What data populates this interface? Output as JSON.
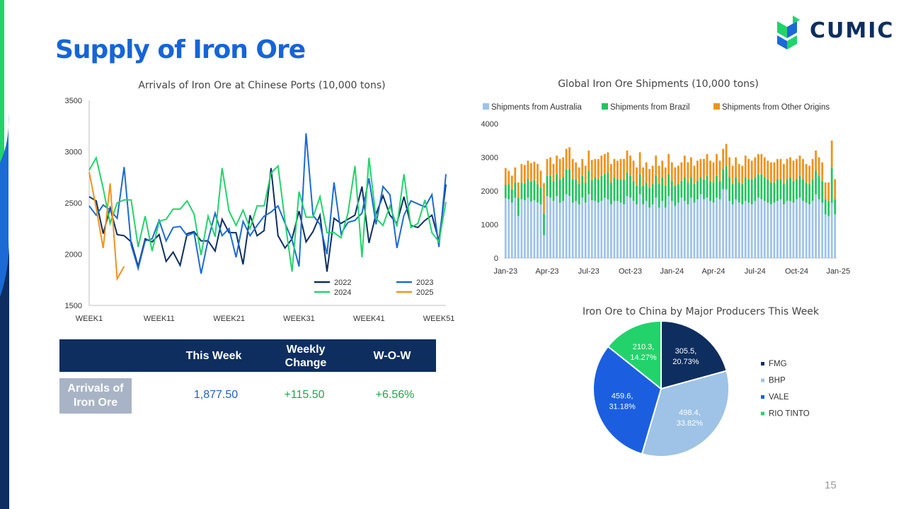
{
  "page": {
    "title": "Supply of Iron Ore",
    "page_number": "15",
    "logo_text": "CUMIC"
  },
  "colors": {
    "title": "#1565d8",
    "navy": "#0e2e60",
    "y2022": "#0e2e60",
    "y2023": "#1b6ad6",
    "y2024": "#22d36b",
    "y2025": "#f0921d",
    "australia": "#9ec3e6",
    "brazil": "#22c55e",
    "other": "#f0921d",
    "fmg": "#0e2e60",
    "bhp": "#9ec3e6",
    "vale": "#1b5fe0",
    "rio": "#22d36b",
    "positive": "#22a548",
    "value_blue": "#1f5fbf"
  },
  "table": {
    "headers": [
      "This Week",
      "Weekly\nChange",
      "W-O-W"
    ],
    "row_label": "Arrivals of\nIron Ore",
    "this_week": "1,877.50",
    "weekly_change": "+115.50",
    "wow": "+6.56%"
  },
  "chart_data": [
    {
      "type": "line",
      "title": "Arrivals of Iron Ore at Chinese Ports (10,000 tons)",
      "ylim": [
        1500,
        3500
      ],
      "yticks": [
        "3500",
        "3000",
        "2500",
        "2000",
        "1500"
      ],
      "xticks": [
        "WEEK1",
        "WEEK11",
        "WEEK21",
        "WEEK31",
        "WEEK41",
        "WEEK51"
      ],
      "series": [
        {
          "name": "2022",
          "values": [
            2560,
            2520,
            2200,
            2450,
            2190,
            2180,
            2120,
            1880,
            2150,
            2120,
            2190,
            1930,
            2020,
            1890,
            2200,
            2220,
            2130,
            2130,
            2030,
            2340,
            2210,
            2210,
            1900,
            2380,
            2180,
            2230,
            2840,
            2180,
            2060,
            2150,
            2420,
            2120,
            2220,
            2380,
            1830,
            2350,
            2300,
            2340,
            2380,
            2660,
            2110,
            2390,
            2570,
            2380,
            2300,
            2560,
            2280,
            2260,
            2330,
            2380,
            2130,
            2680
          ]
        },
        {
          "name": "2023",
          "values": [
            2470,
            2380,
            2480,
            2430,
            2350,
            2850,
            2090,
            1860,
            2130,
            2150,
            2330,
            2130,
            2260,
            2270,
            2180,
            2210,
            1810,
            2140,
            2400,
            2180,
            2250,
            1970,
            2320,
            2180,
            2280,
            2370,
            2410,
            2470,
            2300,
            2140,
            1880,
            3180,
            2380,
            2290,
            2000,
            2700,
            2200,
            2310,
            2330,
            2400,
            2740,
            2290,
            2660,
            2580,
            2060,
            2380,
            2520,
            2490,
            2460,
            2580,
            2070,
            2780
          ]
        },
        {
          "name": "2024",
          "values": [
            2820,
            2940,
            2640,
            2300,
            2500,
            2530,
            2530,
            2070,
            2370,
            2030,
            2320,
            2340,
            2440,
            2440,
            2520,
            2390,
            1990,
            2370,
            2170,
            2840,
            2420,
            2280,
            2430,
            2250,
            2470,
            2470,
            2790,
            2860,
            2320,
            1830,
            2610,
            2360,
            2360,
            2560,
            2210,
            2210,
            2160,
            2400,
            2860,
            1970,
            2940,
            2350,
            2280,
            2470,
            2270,
            2780,
            2260,
            2300,
            2530,
            2210,
            2120,
            2510
          ]
        },
        {
          "name": "2025",
          "values": [
            2800,
            2450,
            2060,
            2690,
            1760,
            1880
          ]
        }
      ]
    },
    {
      "type": "bar",
      "stacked": true,
      "title": "Global Iron Ore Shipments (10,000 tons)",
      "ylim": [
        0,
        4000
      ],
      "yticks": [
        "4000",
        "3000",
        "2000",
        "1000",
        "0"
      ],
      "xticks": [
        "Jan-23",
        "Apr-23",
        "Jul-23",
        "Oct-23",
        "Jan-24",
        "Apr-24",
        "Jul-24",
        "Oct-24",
        "Jan-25"
      ],
      "series": [
        {
          "name": "Shipments from Australia",
          "values": [
            1780,
            1750,
            1650,
            1800,
            1250,
            1750,
            1720,
            1800,
            1680,
            1720,
            1650,
            1600,
            680,
            1850,
            1800,
            1700,
            1850,
            1650,
            1700,
            1900,
            1850,
            1650,
            1700,
            1600,
            1800,
            1650,
            1900,
            1720,
            1700,
            1650,
            1700,
            1800,
            1750,
            1600,
            1700,
            1700,
            1650,
            1600,
            1850,
            1800,
            1700,
            1600,
            1900,
            1600,
            1700,
            1500,
            1600,
            1800,
            1500,
            1700,
            1500,
            1850,
            1700,
            1550,
            1650,
            1800,
            1700,
            1600,
            1800,
            1650,
            1750,
            1900,
            1750,
            1800,
            1700,
            1650,
            1800,
            1750,
            2050,
            2050,
            1700,
            1600,
            1750,
            1650,
            1600,
            1700,
            1650,
            1600,
            1700,
            1800,
            1750,
            1700,
            1650,
            1600,
            1650,
            1700,
            1750,
            1600,
            1700,
            1700,
            1650,
            1750,
            1800,
            1700,
            1650,
            1600,
            1700,
            1900,
            1750,
            1650,
            1300,
            1250,
            1650,
            1300
          ]
        },
        {
          "name": "Shipments from Brazil",
          "values": [
            400,
            450,
            400,
            450,
            550,
            500,
            500,
            550,
            600,
            600,
            550,
            500,
            650,
            600,
            650,
            600,
            650,
            700,
            700,
            750,
            800,
            700,
            650,
            600,
            650,
            600,
            700,
            600,
            700,
            700,
            750,
            700,
            800,
            650,
            700,
            650,
            700,
            750,
            700,
            650,
            600,
            550,
            600,
            550,
            550,
            600,
            600,
            650,
            700,
            700,
            650,
            650,
            600,
            600,
            550,
            500,
            700,
            650,
            600,
            550,
            550,
            500,
            600,
            650,
            600,
            600,
            650,
            550,
            600,
            700,
            700,
            600,
            650,
            600,
            600,
            700,
            700,
            750,
            700,
            700,
            750,
            700,
            700,
            650,
            600,
            650,
            600,
            600,
            650,
            700,
            650,
            600,
            650,
            650,
            600,
            600,
            650,
            700,
            700,
            650,
            450,
            450,
            1050,
            450
          ]
        },
        {
          "name": "Shipments from Other Origins",
          "values": [
            500,
            400,
            400,
            450,
            450,
            550,
            550,
            550,
            550,
            550,
            600,
            500,
            900,
            500,
            550,
            500,
            550,
            600,
            600,
            600,
            650,
            600,
            500,
            500,
            500,
            500,
            600,
            600,
            550,
            600,
            600,
            600,
            600,
            550,
            550,
            550,
            600,
            600,
            650,
            600,
            600,
            550,
            650,
            550,
            600,
            550,
            550,
            600,
            550,
            500,
            550,
            600,
            550,
            550,
            550,
            550,
            650,
            600,
            600,
            550,
            600,
            550,
            600,
            650,
            600,
            600,
            650,
            600,
            600,
            650,
            600,
            550,
            600,
            550,
            550,
            650,
            600,
            550,
            600,
            600,
            600,
            600,
            550,
            600,
            600,
            600,
            600,
            600,
            600,
            600,
            600,
            600,
            600,
            600,
            550,
            550,
            600,
            600,
            550,
            550,
            500,
            550,
            800,
            600
          ]
        }
      ]
    },
    {
      "type": "pie",
      "title": "Iron Ore to China by Major Producers This Week",
      "categories": [
        "FMG",
        "BHP",
        "VALE",
        "RIO TINTO"
      ],
      "values": [
        305.5,
        498.4,
        459.6,
        210.3
      ],
      "labels": [
        "305.5,\n20.73%",
        "498.4,\n33.82%",
        "459.6,\n31.18%",
        "210.3,\n14.27%"
      ]
    }
  ]
}
